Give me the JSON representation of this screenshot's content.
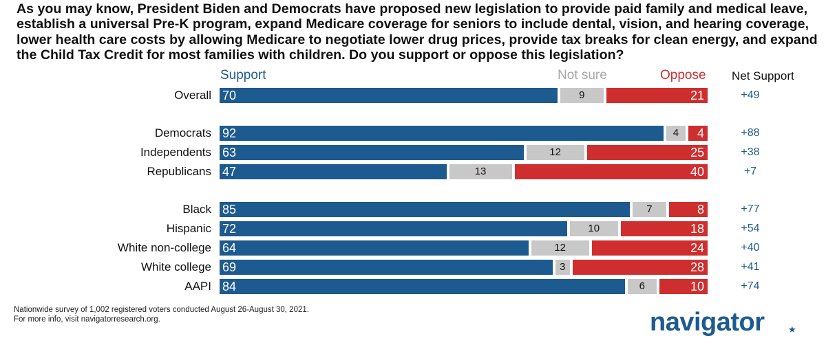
{
  "question": "As you may know, President Biden and Democrats have proposed new legislation to provide paid family and medical leave, establish a universal Pre-K program, expand Medicare coverage for seniors to include dental, vision, and hearing coverage, lower health care costs by allowing Medicare to negotiate lower drug prices, provide tax breaks for clean energy, and expand the Child Tax Credit for most families with children. Do you support or oppose this legislation?",
  "headers": {
    "support": "Support",
    "not_sure": "Not sure",
    "oppose": "Oppose",
    "net": "Net Support"
  },
  "colors": {
    "support": "#1d5a8f",
    "not_sure": "#c8c8c8",
    "oppose": "#cf2e2e"
  },
  "chart_data": {
    "type": "bar",
    "orientation": "horizontal",
    "stacked": true,
    "categories": [
      "Overall",
      "Democrats",
      "Independents",
      "Republicans",
      "Black",
      "Hispanic",
      "White non-college",
      "White college",
      "AAPI"
    ],
    "groups": [
      [
        "Overall"
      ],
      [
        "Democrats",
        "Independents",
        "Republicans"
      ],
      [
        "Black",
        "Hispanic",
        "White non-college",
        "White college",
        "AAPI"
      ]
    ],
    "series": [
      {
        "name": "Support",
        "values": [
          70,
          92,
          63,
          47,
          85,
          72,
          64,
          69,
          84
        ]
      },
      {
        "name": "Not sure",
        "values": [
          9,
          4,
          12,
          13,
          7,
          10,
          12,
          3,
          6
        ]
      },
      {
        "name": "Oppose",
        "values": [
          21,
          4,
          25,
          40,
          8,
          18,
          24,
          28,
          10
        ]
      }
    ],
    "net_support": [
      "+49",
      "+88",
      "+38",
      "+7",
      "+77",
      "+54",
      "+40",
      "+41",
      "+74"
    ],
    "xlim": [
      0,
      100
    ]
  },
  "footnote": {
    "line1": "Nationwide survey of 1,002 registered voters conducted August 26-August 30, 2021.",
    "line2": "For more info, visit navigatorresearch.org."
  },
  "logo": {
    "text": "navigator",
    "mark": "★"
  }
}
